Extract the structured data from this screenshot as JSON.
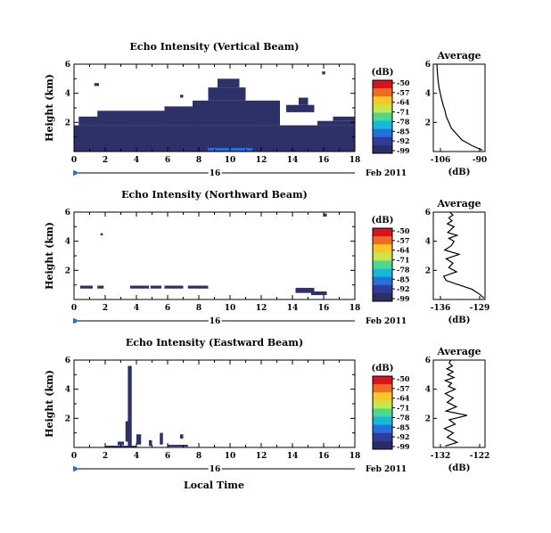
{
  "figure": {
    "xlabel": "Local Time",
    "date_suffix": "Feb 2011",
    "day_marker": "16",
    "colorbar_unit": "(dB)",
    "colorbar_ticks": [
      "-50",
      "-57",
      "-64",
      "-71",
      "-78",
      "-85",
      "-92",
      "-99"
    ],
    "colors": {
      "fill": "#2e3168",
      "scale": [
        "#d5141e",
        "#f06b22",
        "#f7c62a",
        "#c7e64a",
        "#4fd68f",
        "#16b9d9",
        "#2472d9",
        "#303c9a",
        "#2c2e63"
      ]
    }
  },
  "chart_data": [
    {
      "type": "heatmap",
      "title": "Echo Intensity (Vertical Beam)",
      "ylabel": "Height (km)",
      "xlim": [
        0,
        18
      ],
      "ylim": [
        0,
        6
      ],
      "xticks": [
        "0",
        "2",
        "4",
        "6",
        "8",
        "10",
        "12",
        "14",
        "16",
        "18"
      ],
      "yticks": [
        "2",
        "4",
        "6"
      ],
      "cells": [
        [
          0,
          0,
          18,
          1.8
        ],
        [
          0.3,
          1.8,
          3.4,
          2.4
        ],
        [
          1.5,
          1.8,
          8.0,
          2.8
        ],
        [
          5.8,
          1.8,
          11.5,
          3.1
        ],
        [
          7.6,
          1.8,
          13.2,
          3.5
        ],
        [
          8.6,
          3.5,
          11.0,
          4.4
        ],
        [
          9.2,
          4.4,
          10.6,
          5.0
        ],
        [
          13.6,
          2.7,
          15.4,
          3.2
        ],
        [
          14.4,
          3.2,
          15.0,
          3.7
        ],
        [
          1.3,
          4.5,
          1.6,
          4.7
        ],
        [
          6.8,
          3.7,
          7.0,
          3.9
        ],
        [
          15.9,
          5.3,
          16.1,
          5.5
        ],
        [
          16.6,
          2.1,
          18,
          2.4
        ],
        [
          15.6,
          1.8,
          18,
          2.1
        ]
      ],
      "avg_title": "Average",
      "avg_xticks": [
        "-106",
        "-90"
      ],
      "avg_xlabel": "(dB)",
      "avg_yticks": [
        "2",
        "4",
        "6"
      ],
      "avg_xlim": [
        -108,
        -88
      ],
      "avg_ylim": [
        0,
        6
      ],
      "avg_profile": {
        "x": [
          -89.0,
          -93.0,
          -97.0,
          -99.0,
          -101.0,
          -102.0,
          -103.0,
          -103.5,
          -104.2,
          -104.8,
          -105.3,
          -105.8,
          -106.1,
          -106.3,
          -106.5,
          -106.6
        ],
        "y": [
          0.1,
          0.4,
          0.8,
          1.2,
          1.6,
          2.0,
          2.4,
          2.8,
          3.2,
          3.6,
          4.0,
          4.4,
          4.8,
          5.2,
          5.6,
          6.0
        ]
      }
    },
    {
      "type": "heatmap",
      "title": "Echo Intensity (Northward Beam)",
      "ylabel": "Height (km)",
      "xlim": [
        0,
        18
      ],
      "ylim": [
        0,
        6
      ],
      "xticks": [
        "0",
        "2",
        "4",
        "6",
        "8",
        "10",
        "12",
        "14",
        "16",
        "18"
      ],
      "yticks": [
        "2",
        "4",
        "6"
      ],
      "cells": [
        [
          0.4,
          0.75,
          1.2,
          0.95
        ],
        [
          1.5,
          0.75,
          1.9,
          0.95
        ],
        [
          3.6,
          0.75,
          4.8,
          0.95
        ],
        [
          4.9,
          0.75,
          5.6,
          0.95
        ],
        [
          5.8,
          0.75,
          7.0,
          0.95
        ],
        [
          7.3,
          0.75,
          8.6,
          0.95
        ],
        [
          14.2,
          0.45,
          15.4,
          0.8
        ],
        [
          15.2,
          0.3,
          16.2,
          0.55
        ],
        [
          1.7,
          4.4,
          1.85,
          4.55
        ],
        [
          16.0,
          5.7,
          16.2,
          5.9
        ]
      ],
      "avg_title": "Average",
      "avg_xticks": [
        "-136",
        "-129"
      ],
      "avg_xlabel": "(dB)",
      "avg_yticks": [
        "2",
        "4",
        "6"
      ],
      "avg_xlim": [
        -138,
        -128
      ],
      "avg_ylim": [
        0,
        6
      ],
      "avg_profile": {
        "x": [
          -128.2,
          -129.0,
          -130.5,
          -133.0,
          -135.5,
          -136.0,
          -133.5,
          -135.0,
          -134.2,
          -135.5,
          -133.0,
          -135.8,
          -134.5,
          -134.0,
          -135.0,
          -133.4,
          -135.2,
          -134.6,
          -134.0,
          -135.3,
          -134.4,
          -135.0,
          -134.2,
          -134.8
        ],
        "y": [
          0.1,
          0.35,
          0.7,
          1.0,
          1.3,
          1.6,
          1.9,
          2.2,
          2.5,
          2.8,
          3.1,
          3.4,
          3.7,
          4.0,
          4.2,
          4.4,
          4.6,
          4.8,
          5.0,
          5.2,
          5.4,
          5.6,
          5.8,
          6.0
        ]
      }
    },
    {
      "type": "heatmap",
      "title": "Echo Intensity (Eastward Beam)",
      "ylabel": "Height (km)",
      "xlabel": "Local Time",
      "xlim": [
        0,
        18
      ],
      "ylim": [
        0,
        6
      ],
      "xticks": [
        "0",
        "2",
        "4",
        "6",
        "8",
        "10",
        "12",
        "14",
        "16",
        "18"
      ],
      "yticks": [
        "2",
        "4",
        "6"
      ],
      "cells": [
        [
          3.45,
          0,
          3.7,
          5.6
        ],
        [
          3.3,
          0.4,
          3.55,
          1.8
        ],
        [
          2.8,
          0.15,
          3.2,
          0.4
        ],
        [
          4.0,
          0.2,
          4.3,
          0.9
        ],
        [
          4.8,
          0.1,
          5.0,
          0.5
        ],
        [
          5.5,
          0.2,
          5.7,
          1.0
        ],
        [
          6.8,
          0.6,
          7.0,
          0.9
        ],
        [
          2.0,
          0,
          4.0,
          0.12
        ],
        [
          6.0,
          0.05,
          7.3,
          0.18
        ]
      ],
      "avg_title": "Average",
      "avg_xticks": [
        "-132",
        "-122"
      ],
      "avg_xlabel": "(dB)",
      "avg_yticks": [
        "2",
        "4",
        "6"
      ],
      "avg_xlim": [
        -134,
        -121
      ],
      "avg_ylim": [
        0,
        6
      ],
      "avg_profile": {
        "x": [
          -131.0,
          -128.0,
          -130.5,
          -129.0,
          -131.2,
          -128.5,
          -130.0,
          -125.5,
          -130.8,
          -128.2,
          -130.5,
          -129.0,
          -131.0,
          -128.5,
          -130.2,
          -129.4,
          -131.0,
          -128.8,
          -130.4,
          -129.0,
          -130.6,
          -129.2,
          -130.0,
          -129.6
        ],
        "y": [
          0.1,
          0.35,
          0.7,
          1.0,
          1.3,
          1.6,
          1.9,
          2.2,
          2.5,
          2.8,
          3.1,
          3.4,
          3.7,
          4.0,
          4.2,
          4.4,
          4.6,
          4.8,
          5.0,
          5.2,
          5.4,
          5.6,
          5.8,
          6.0
        ]
      }
    }
  ]
}
